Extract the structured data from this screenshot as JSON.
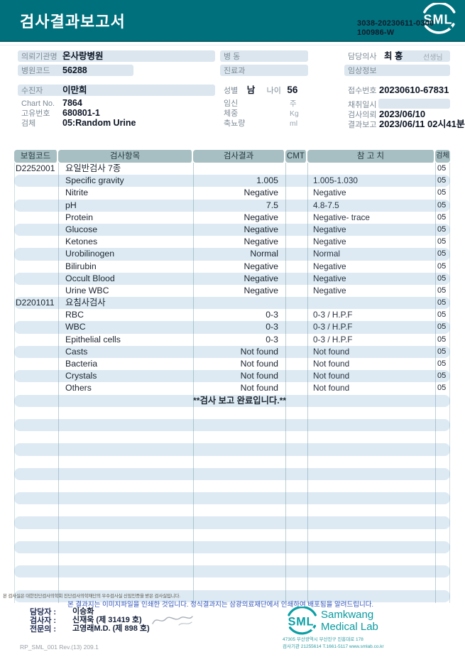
{
  "colors": {
    "banner_teal": "#00707c",
    "table_header": "#a7bfc2",
    "row_stripe": "#ddeaf3",
    "field_bar": "#dce6ef",
    "logo_teal": "#0aa0a6",
    "note_blue": "#3355bb"
  },
  "header": {
    "title": "검사결과보고서",
    "logo": "SML",
    "report_no": "3038-20230611-0300",
    "barcode_no": "100986-W"
  },
  "info": {
    "left": [
      {
        "label": "의뢰기관명",
        "value": "온사랑병원"
      },
      {
        "label": "병원코드",
        "value": "56288"
      },
      {
        "label": "수진자",
        "value": "이만희"
      },
      {
        "label": "Chart No.",
        "value": "7864"
      },
      {
        "label": "고유번호",
        "value": "680801-1"
      },
      {
        "label": "검체",
        "value": "05:Random Urine"
      }
    ],
    "middle": {
      "ward_label": "병 동",
      "dept_label": "진료과",
      "sex_label": "성별",
      "sex": "남",
      "age_label": "나이",
      "age": "56",
      "preg_label": "임신",
      "preg_unit": "주",
      "weight_label": "체중",
      "weight_unit": "Kg",
      "urine_label": "축뇨량",
      "urine_unit": "ml"
    },
    "right": [
      {
        "label": "담당의사",
        "value": "최 홍",
        "suffix": "선생님"
      },
      {
        "label": "임상정보",
        "value": ""
      },
      {
        "label": "접수번호",
        "value": "20230610-67831"
      },
      {
        "label": "채취일시",
        "value": ""
      },
      {
        "label": "검사의뢰",
        "value": "2023/06/10"
      },
      {
        "label": "결과보고",
        "value": "2023/06/11 02시41분"
      }
    ]
  },
  "table": {
    "headers": [
      "보험코드",
      "검사항목",
      "검사결과",
      "CMT",
      "참 고 치",
      "검체"
    ],
    "rows": [
      [
        "D2252001",
        "요일반검사 7종",
        "",
        "",
        "",
        "05"
      ],
      [
        "",
        "Specific gravity",
        "1.005",
        "",
        "1.005-1.030",
        "05"
      ],
      [
        "",
        "Nitrite",
        "Negative",
        "",
        "Negative",
        "05"
      ],
      [
        "",
        "pH",
        "7.5",
        "",
        "4.8-7.5",
        "05"
      ],
      [
        "",
        "Protein",
        "Negative",
        "",
        "Negative- trace",
        "05"
      ],
      [
        "",
        "Glucose",
        "Negative",
        "",
        "Negative",
        "05"
      ],
      [
        "",
        "Ketones",
        "Negative",
        "",
        "Negative",
        "05"
      ],
      [
        "",
        "Urobilinogen",
        "Normal",
        "",
        "Normal",
        "05"
      ],
      [
        "",
        "Bilirubin",
        "Negative",
        "",
        "Negative",
        "05"
      ],
      [
        "",
        "Occult Blood",
        "Negative",
        "",
        "Negative",
        "05"
      ],
      [
        "",
        "Urine WBC",
        "Negative",
        "",
        "Negative",
        "05"
      ],
      [
        "D2201011",
        "요침사검사",
        "",
        "",
        "",
        "05"
      ],
      [
        "",
        "RBC",
        "0-3",
        "",
        "0-3 / H.P.F",
        "05"
      ],
      [
        "",
        "WBC",
        "0-3",
        "",
        "0-3 / H.P.F",
        "05"
      ],
      [
        "",
        "Epithelial cells",
        "0-3",
        "",
        "0-3 / H.P.F",
        "05"
      ],
      [
        "",
        "Casts",
        "Not found",
        "",
        "Not found",
        "05"
      ],
      [
        "",
        "Bacteria",
        "Not found",
        "",
        "Not found",
        "05"
      ],
      [
        "",
        "Crystals",
        "Not found",
        "",
        "Not found",
        "05"
      ],
      [
        "",
        "Others",
        "Not found",
        "",
        "Not found",
        "05"
      ],
      [
        "",
        "",
        "**검사 보고 완료입니다.**",
        "",
        "",
        ""
      ]
    ],
    "empty_rows": 16
  },
  "footer": {
    "cert_note": "본 검사실은 대한진단검사의학회 진단검사의학재단의 우수검사실 신임인증을 받은 검사실입니다.",
    "print_note": "본 결과지는 이미지파일을 인쇄한 것입니다. 정식결과지는 삼광의료재단에서 인쇄하여 배포됨을 알려드립니다.",
    "staff": [
      {
        "label": "담당자 :",
        "value": "이승화"
      },
      {
        "label": "검사자 :",
        "value": "신재욱 (제 31419 호)"
      },
      {
        "label": "전문의 :",
        "value": "고영래M.D. (제 898 호)"
      }
    ],
    "lab": {
      "logo": "SML",
      "name_line1": "Samkwang",
      "name_line2": "Medical Lab",
      "address": "47305 부산광역시 부산진구 진흥대로 178",
      "contact": "검사기관 21255614 T.1661-5117 www.smlab.co.kr"
    },
    "doc_code": "RP_SML_001 Rev.(13) 209.1"
  }
}
